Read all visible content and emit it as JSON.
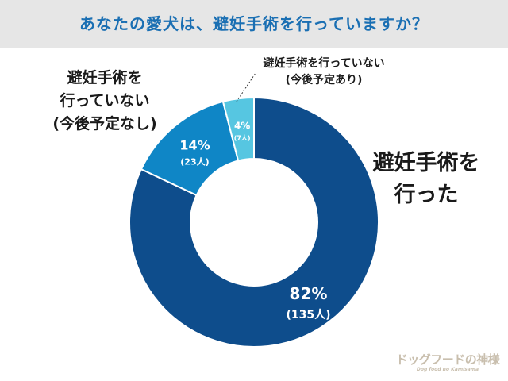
{
  "header": {
    "title": "あなたの愛犬は、避妊手術を行っていますか？"
  },
  "chart_data": {
    "type": "pie",
    "donut": true,
    "title": "あなたの愛犬は、避妊手術を行っていますか？",
    "slices": [
      {
        "label": "避妊手術を行った",
        "percent": 82,
        "percent_text": "82%",
        "count_text": "(135人)",
        "count": 135,
        "color": "#0e4d8c"
      },
      {
        "label": "避妊手術を行っていない(今後予定なし)",
        "percent": 14,
        "percent_text": "14%",
        "count_text": "(23人)",
        "count": 23,
        "color": "#0f86c6"
      },
      {
        "label": "避妊手術を行っていない(今後予定あり)",
        "percent": 4,
        "percent_text": "4%",
        "count_text": "(7人)",
        "count": 7,
        "color": "#56c6e1"
      }
    ]
  },
  "labels": {
    "done_line1": "避妊手術を",
    "done_line2": "行った",
    "notplanned_line1": "避妊手術を",
    "notplanned_line2": "行っていない",
    "notplanned_line3": "(今後予定なし)",
    "planned_line1": "避妊手術を行っていない",
    "planned_line2": "(今後予定あり)"
  },
  "watermark": {
    "main": "ドッグフードの神様",
    "sub": "Dog food no Kamisama"
  }
}
